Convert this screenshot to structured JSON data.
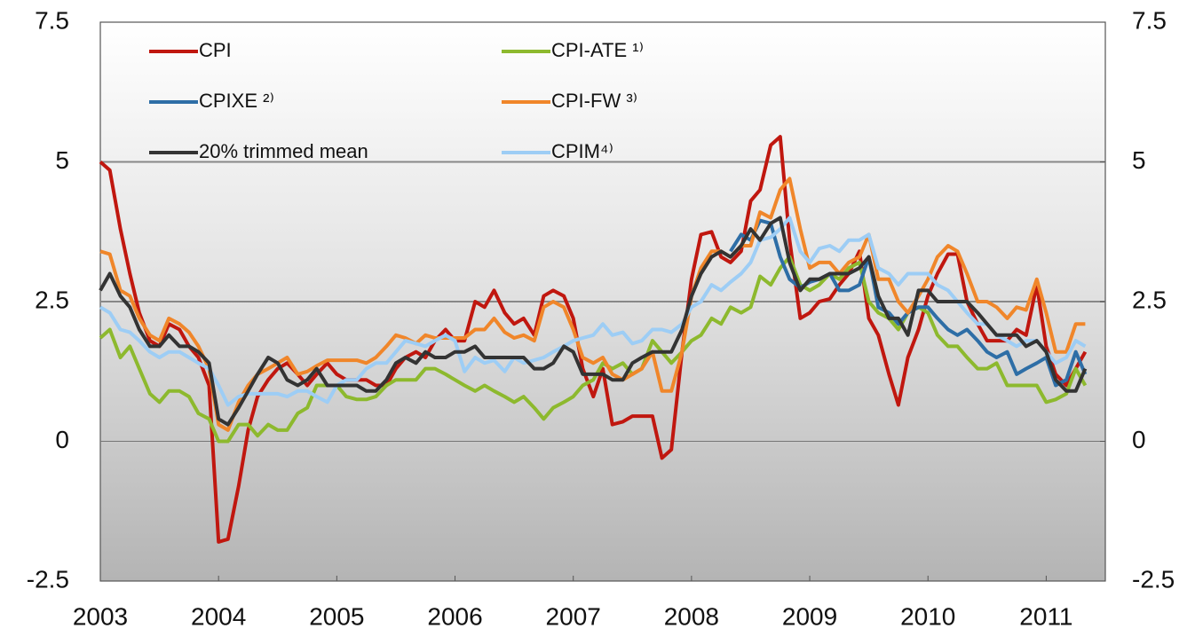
{
  "chart_data": {
    "type": "line",
    "x": [
      2003.0,
      2003.08,
      2003.17,
      2003.25,
      2003.33,
      2003.42,
      2003.5,
      2003.58,
      2003.67,
      2003.75,
      2003.83,
      2003.92,
      2004.0,
      2004.08,
      2004.17,
      2004.25,
      2004.33,
      2004.42,
      2004.5,
      2004.58,
      2004.67,
      2004.75,
      2004.83,
      2004.92,
      2005.0,
      2005.08,
      2005.17,
      2005.25,
      2005.33,
      2005.42,
      2005.5,
      2005.58,
      2005.67,
      2005.75,
      2005.83,
      2005.92,
      2006.0,
      2006.08,
      2006.17,
      2006.25,
      2006.33,
      2006.42,
      2006.5,
      2006.58,
      2006.67,
      2006.75,
      2006.83,
      2006.92,
      2007.0,
      2007.08,
      2007.17,
      2007.25,
      2007.33,
      2007.42,
      2007.5,
      2007.58,
      2007.67,
      2007.75,
      2007.83,
      2007.92,
      2008.0,
      2008.08,
      2008.17,
      2008.25,
      2008.33,
      2008.42,
      2008.5,
      2008.58,
      2008.67,
      2008.75,
      2008.83,
      2008.92,
      2009.0,
      2009.08,
      2009.17,
      2009.25,
      2009.33,
      2009.42,
      2009.5,
      2009.58,
      2009.67,
      2009.75,
      2009.83,
      2009.92,
      2010.0,
      2010.08,
      2010.17,
      2010.25,
      2010.33,
      2010.42,
      2010.5,
      2010.58,
      2010.67,
      2010.75,
      2010.83,
      2010.92,
      2011.0,
      2011.08,
      2011.17,
      2011.25,
      2011.33
    ],
    "xlim": [
      2003,
      2011.5
    ],
    "xticks": [
      2003,
      2004,
      2005,
      2006,
      2007,
      2008,
      2009,
      2010,
      2011
    ],
    "ylim": [
      -2.5,
      7.5
    ],
    "yticks": [
      -2.5,
      0,
      2.5,
      5,
      7.5
    ],
    "y2lim": [
      -2.5,
      7.5
    ],
    "y2ticks": [
      -2.5,
      0,
      2.5,
      5,
      7.5
    ],
    "series": [
      {
        "name": "CPI",
        "color": "#c0170f",
        "values": [
          5.0,
          4.85,
          3.8,
          3.0,
          2.3,
          1.8,
          1.7,
          2.1,
          2.0,
          1.7,
          1.5,
          1.0,
          -1.8,
          -1.75,
          -0.8,
          0.2,
          0.8,
          1.1,
          1.3,
          1.4,
          1.2,
          1.0,
          1.2,
          1.4,
          1.2,
          1.1,
          1.1,
          1.1,
          1.0,
          1.0,
          1.3,
          1.5,
          1.6,
          1.5,
          1.8,
          2.0,
          1.8,
          1.8,
          2.5,
          2.4,
          2.7,
          2.3,
          2.1,
          2.2,
          1.9,
          2.6,
          2.7,
          2.6,
          2.2,
          1.3,
          0.8,
          1.3,
          0.3,
          0.35,
          0.45,
          0.45,
          0.45,
          -0.3,
          -0.15,
          1.6,
          2.9,
          3.7,
          3.75,
          3.3,
          3.2,
          3.4,
          4.3,
          4.5,
          5.3,
          5.45,
          3.6,
          2.2,
          2.3,
          2.5,
          2.55,
          2.8,
          3.0,
          3.4,
          2.2,
          1.9,
          1.2,
          0.65,
          1.5,
          2.0,
          2.6,
          3.0,
          3.35,
          3.35,
          2.5,
          2.1,
          1.8,
          1.8,
          1.8,
          2.0,
          1.9,
          2.8,
          1.7,
          1.2,
          1.0,
          1.3,
          1.6
        ]
      },
      {
        "name": "CPI-ATE ¹⁾",
        "color": "#8db92e",
        "values": [
          1.85,
          2.0,
          1.5,
          1.7,
          1.3,
          0.85,
          0.7,
          0.9,
          0.9,
          0.8,
          0.5,
          0.4,
          0.0,
          0.0,
          0.3,
          0.3,
          0.1,
          0.3,
          0.2,
          0.2,
          0.5,
          0.6,
          1.0,
          1.0,
          1.0,
          0.8,
          0.75,
          0.75,
          0.8,
          1.0,
          1.1,
          1.1,
          1.1,
          1.3,
          1.3,
          1.2,
          1.1,
          1.0,
          0.9,
          1.0,
          0.9,
          0.8,
          0.7,
          0.8,
          0.6,
          0.4,
          0.6,
          0.7,
          0.8,
          1.0,
          1.1,
          1.4,
          1.3,
          1.4,
          1.2,
          1.3,
          1.8,
          1.6,
          1.4,
          1.6,
          1.8,
          1.9,
          2.2,
          2.1,
          2.4,
          2.3,
          2.4,
          2.95,
          2.8,
          3.1,
          3.3,
          2.8,
          2.7,
          2.8,
          3.0,
          2.9,
          3.1,
          3.2,
          2.5,
          2.3,
          2.2,
          2.0,
          2.3,
          2.4,
          2.3,
          1.9,
          1.7,
          1.7,
          1.5,
          1.3,
          1.3,
          1.4,
          1.0,
          1.0,
          1.0,
          1.0,
          0.7,
          0.75,
          0.85,
          1.3,
          1.0
        ]
      },
      {
        "name": "CPIXE ²⁾",
        "color": "#2e6ea6",
        "values": [
          null,
          null,
          null,
          null,
          null,
          null,
          null,
          null,
          null,
          null,
          null,
          null,
          null,
          null,
          null,
          null,
          null,
          null,
          null,
          null,
          null,
          null,
          null,
          null,
          null,
          null,
          null,
          null,
          null,
          null,
          null,
          null,
          null,
          null,
          null,
          null,
          null,
          null,
          null,
          null,
          null,
          null,
          null,
          null,
          null,
          null,
          null,
          null,
          null,
          null,
          null,
          null,
          null,
          null,
          null,
          null,
          null,
          null,
          null,
          null,
          null,
          null,
          null,
          null,
          3.4,
          3.7,
          3.6,
          3.95,
          3.9,
          3.3,
          2.9,
          2.75,
          2.85,
          2.9,
          3.0,
          2.7,
          2.7,
          2.8,
          3.3,
          2.4,
          2.3,
          2.1,
          2.3,
          2.4,
          2.4,
          2.2,
          2.0,
          1.9,
          2.0,
          1.8,
          1.6,
          1.5,
          1.6,
          1.2,
          1.3,
          1.4,
          1.5,
          1.0,
          1.1,
          1.6,
          1.2
        ]
      },
      {
        "name": "CPI-FW ³⁾",
        "color": "#f0862a",
        "values": [
          3.4,
          3.35,
          2.7,
          2.6,
          2.2,
          1.9,
          1.8,
          2.2,
          2.1,
          1.95,
          1.7,
          1.3,
          0.3,
          0.2,
          0.7,
          1.0,
          1.2,
          1.3,
          1.4,
          1.5,
          1.2,
          1.25,
          1.35,
          1.45,
          1.45,
          1.45,
          1.45,
          1.4,
          1.5,
          1.7,
          1.9,
          1.85,
          1.75,
          1.9,
          1.85,
          1.85,
          1.85,
          1.85,
          2.0,
          2.0,
          2.2,
          1.95,
          1.85,
          1.9,
          1.8,
          2.4,
          2.5,
          2.4,
          2.0,
          1.5,
          1.4,
          1.5,
          1.2,
          1.1,
          1.2,
          1.3,
          1.6,
          0.9,
          0.9,
          1.6,
          2.6,
          3.1,
          3.4,
          3.4,
          3.3,
          3.5,
          3.5,
          4.1,
          4.0,
          4.5,
          4.7,
          3.8,
          3.1,
          3.2,
          3.2,
          3.0,
          3.2,
          3.3,
          3.7,
          2.9,
          2.9,
          2.5,
          2.3,
          2.6,
          2.9,
          3.3,
          3.5,
          3.4,
          3.0,
          2.5,
          2.5,
          2.4,
          2.2,
          2.4,
          2.35,
          2.9,
          2.3,
          1.6,
          1.6,
          2.1,
          2.1
        ]
      },
      {
        "name": "20% trimmed mean",
        "color": "#333333",
        "values": [
          2.7,
          3.0,
          2.6,
          2.4,
          2.0,
          1.7,
          1.7,
          1.9,
          1.7,
          1.7,
          1.6,
          1.4,
          0.4,
          0.3,
          0.6,
          0.9,
          1.2,
          1.5,
          1.4,
          1.1,
          1.0,
          1.1,
          1.3,
          1.0,
          1.0,
          1.0,
          1.0,
          0.9,
          0.9,
          1.1,
          1.4,
          1.5,
          1.4,
          1.6,
          1.5,
          1.5,
          1.6,
          1.6,
          1.7,
          1.5,
          1.5,
          1.5,
          1.5,
          1.5,
          1.3,
          1.3,
          1.4,
          1.7,
          1.6,
          1.2,
          1.2,
          1.2,
          1.1,
          1.1,
          1.4,
          1.5,
          1.6,
          1.6,
          1.6,
          2.0,
          2.6,
          3.0,
          3.3,
          3.4,
          3.3,
          3.5,
          3.8,
          3.6,
          3.9,
          4.0,
          3.2,
          2.7,
          2.9,
          2.9,
          3.0,
          3.0,
          3.0,
          3.1,
          3.3,
          2.6,
          2.2,
          2.2,
          1.9,
          2.7,
          2.7,
          2.5,
          2.5,
          2.5,
          2.5,
          2.3,
          2.1,
          1.9,
          1.9,
          1.9,
          1.7,
          1.8,
          1.6,
          1.1,
          0.9,
          0.9,
          1.3
        ]
      },
      {
        "name": "CPIM⁴⁾",
        "color": "#9dcdf5",
        "values": [
          2.4,
          2.3,
          2.0,
          1.95,
          1.8,
          1.6,
          1.5,
          1.6,
          1.6,
          1.5,
          1.4,
          1.3,
          1.0,
          0.65,
          0.8,
          0.85,
          0.85,
          0.85,
          0.85,
          0.8,
          0.9,
          0.9,
          0.8,
          0.7,
          1.0,
          1.1,
          1.1,
          1.3,
          1.4,
          1.4,
          1.6,
          1.8,
          1.75,
          1.7,
          1.8,
          1.9,
          1.8,
          1.25,
          1.5,
          1.4,
          1.45,
          1.25,
          1.5,
          1.4,
          1.45,
          1.5,
          1.6,
          1.7,
          1.8,
          1.85,
          1.9,
          2.1,
          1.9,
          1.95,
          1.75,
          1.8,
          2.0,
          2.0,
          1.95,
          2.1,
          2.4,
          2.5,
          2.8,
          2.7,
          2.85,
          3.0,
          3.2,
          3.6,
          3.65,
          3.8,
          4.0,
          3.4,
          3.2,
          3.45,
          3.5,
          3.4,
          3.6,
          3.6,
          3.7,
          3.1,
          3.0,
          2.8,
          3.0,
          3.0,
          3.0,
          2.8,
          2.7,
          2.5,
          2.3,
          2.1,
          2.1,
          1.9,
          1.8,
          1.7,
          1.8,
          1.8,
          1.6,
          1.4,
          1.5,
          1.8,
          1.7
        ]
      }
    ]
  }
}
